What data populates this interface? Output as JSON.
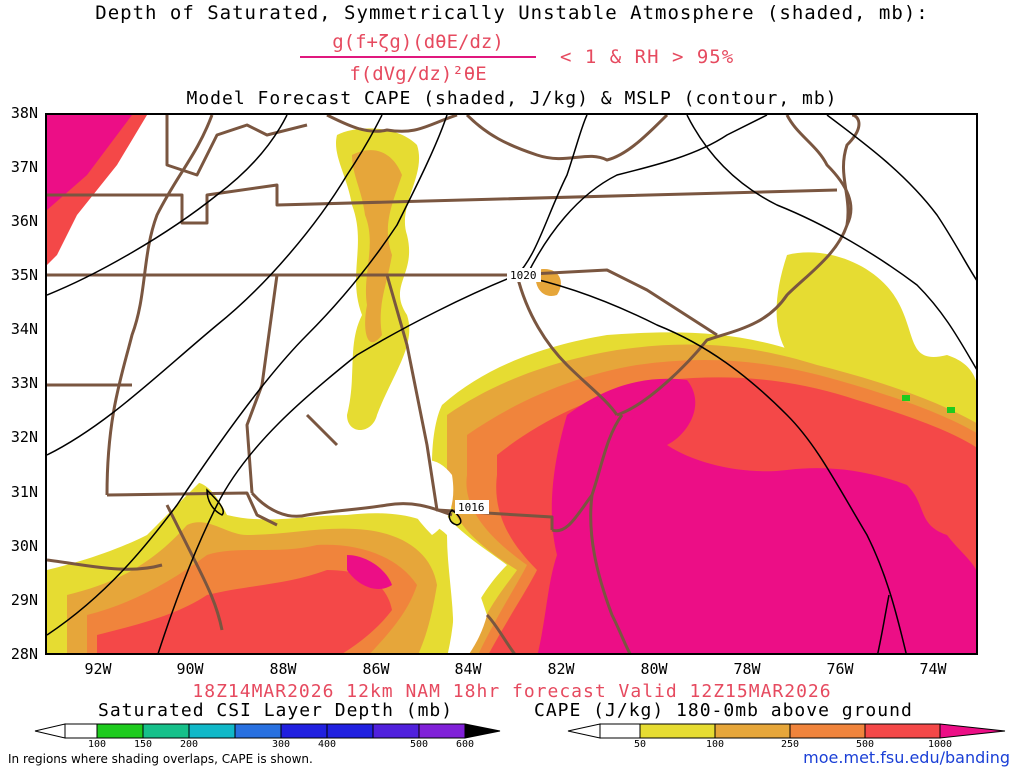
{
  "header": {
    "title_line1": "Depth of Saturated, Symmetrically Unstable Atmosphere (shaded, mb):",
    "formula_numerator": "g(f+ζg)(dθE/dz)",
    "formula_denominator": "f(dVg/dz)²θE",
    "formula_condition": "< 1 & RH > 95%",
    "title_line3": "Model Forecast CAPE (shaded, J/kg) & MSLP (contour, mb)"
  },
  "map": {
    "lat_labels": [
      "38N",
      "37N",
      "36N",
      "35N",
      "34N",
      "33N",
      "32N",
      "31N",
      "30N",
      "29N",
      "28N"
    ],
    "lon_labels": [
      "92W",
      "90W",
      "88W",
      "86W",
      "84W",
      "82W",
      "80W",
      "78W",
      "76W",
      "74W"
    ],
    "isobar_labels": [
      {
        "text": "1020"
      },
      {
        "text": "1016"
      }
    ],
    "colors": {
      "border": "#7a5640",
      "isobar": "#000000",
      "cape_yellow": "#e6dc32",
      "cape_gold": "#e6a63a",
      "cape_orange": "#f0843c",
      "cape_red": "#f44848",
      "cape_magenta": "#ec0e86"
    }
  },
  "valid_line": "18Z14MAR2026 12km NAM 18hr forecast Valid 12Z15MAR2026",
  "colorbar_csi": {
    "title": "Saturated CSI Layer Depth (mb)",
    "ticks": [
      "100",
      "150",
      "200",
      "300",
      "400",
      "500",
      "600"
    ],
    "colors": [
      "#ffffff",
      "#1ecb1e",
      "#16c08a",
      "#10b8c8",
      "#2870e0",
      "#2020e0",
      "#8020d8",
      "#000000"
    ]
  },
  "colorbar_cape": {
    "title": "CAPE (J/kg) 180-0mb above ground",
    "ticks": [
      "50",
      "100",
      "250",
      "500",
      "1000"
    ],
    "colors": [
      "#ffffff",
      "#e6dc32",
      "#e6a63a",
      "#f0843c",
      "#f44848",
      "#ec0e86"
    ]
  },
  "footer": {
    "note": "In regions where shading overlaps, CAPE is shown.",
    "url": "moe.met.fsu.edu/banding"
  }
}
